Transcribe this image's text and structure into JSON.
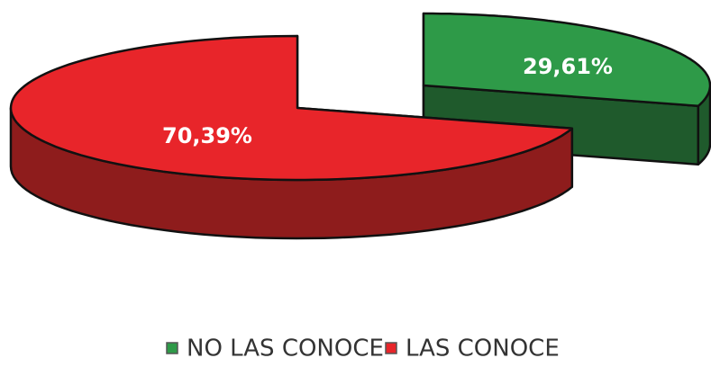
{
  "chart_data": {
    "type": "pie",
    "categories": [
      "NO LAS CONOCE",
      "LAS CONOCE"
    ],
    "values": [
      29.61,
      70.39
    ],
    "value_labels": [
      "29,61%",
      "70,39%"
    ],
    "colors": [
      "#2e9a48",
      "#e8252a"
    ],
    "side_colors": [
      "#1f5a2c",
      "#8e1c1c"
    ],
    "legend": "bottom"
  }
}
